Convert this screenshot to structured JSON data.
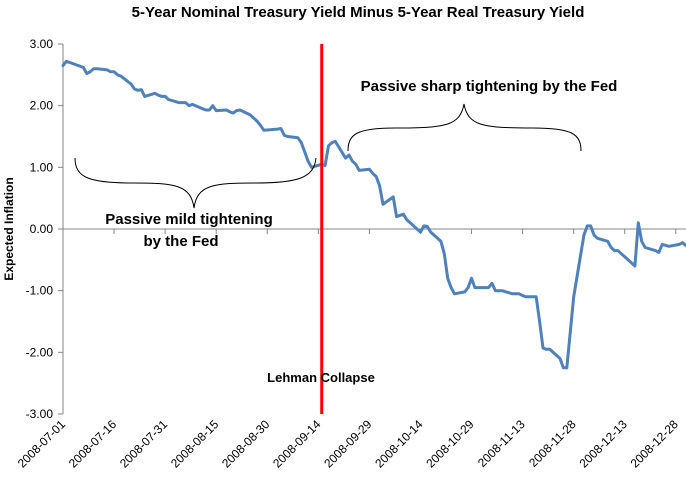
{
  "chart_data": {
    "type": "line",
    "title": "5-Year Nominal Treasury Yield Minus 5-Year Real Treasury Yield",
    "xlabel": "",
    "ylabel": "Expected Inflation",
    "ylim": [
      -3.0,
      3.0
    ],
    "yticks": [
      "3.00",
      "2.00",
      "1.00",
      "0.00",
      "-1.00",
      "-2.00",
      "-3.00"
    ],
    "xticks": [
      "2008-07-01",
      "2008-07-16",
      "2008-07-31",
      "2008-08-15",
      "2008-08-30",
      "2008-09-14",
      "2008-09-29",
      "2008-10-14",
      "2008-10-29",
      "2008-11-13",
      "2008-11-28",
      "2008-12-13",
      "2008-12-28"
    ],
    "grid": false,
    "legend": "none",
    "line_color": "#4F81BD",
    "marker_line_color": "#FF0000",
    "series": [
      {
        "x": [
          "2008-07-01",
          "2008-07-02",
          "2008-07-03",
          "2008-07-07",
          "2008-07-08",
          "2008-07-09",
          "2008-07-10",
          "2008-07-11",
          "2008-07-14",
          "2008-07-15",
          "2008-07-16",
          "2008-07-17",
          "2008-07-18",
          "2008-07-21",
          "2008-07-22",
          "2008-07-23",
          "2008-07-24",
          "2008-07-25",
          "2008-07-28",
          "2008-07-29",
          "2008-07-30",
          "2008-07-31",
          "2008-08-01",
          "2008-08-04",
          "2008-08-05",
          "2008-08-06",
          "2008-08-07",
          "2008-08-08",
          "2008-08-11",
          "2008-08-12",
          "2008-08-13",
          "2008-08-14",
          "2008-08-15",
          "2008-08-18",
          "2008-08-19",
          "2008-08-20",
          "2008-08-21",
          "2008-08-22",
          "2008-08-25",
          "2008-08-26",
          "2008-08-27",
          "2008-08-28",
          "2008-08-29",
          "2008-09-02",
          "2008-09-03",
          "2008-09-04",
          "2008-09-05",
          "2008-09-08",
          "2008-09-09",
          "2008-09-10",
          "2008-09-11",
          "2008-09-12",
          "2008-09-15",
          "2008-09-16",
          "2008-09-17",
          "2008-09-18",
          "2008-09-19",
          "2008-09-22",
          "2008-09-23",
          "2008-09-24",
          "2008-09-25",
          "2008-09-26",
          "2008-09-29",
          "2008-09-30",
          "2008-10-01",
          "2008-10-02",
          "2008-10-03",
          "2008-10-06",
          "2008-10-07",
          "2008-10-08",
          "2008-10-09",
          "2008-10-10",
          "2008-10-14",
          "2008-10-15",
          "2008-10-16",
          "2008-10-17",
          "2008-10-20",
          "2008-10-21",
          "2008-10-22",
          "2008-10-23",
          "2008-10-24",
          "2008-10-27",
          "2008-10-28",
          "2008-10-29",
          "2008-10-30",
          "2008-10-31",
          "2008-11-03",
          "2008-11-04",
          "2008-11-05",
          "2008-11-06",
          "2008-11-07",
          "2008-11-10",
          "2008-11-12",
          "2008-11-13",
          "2008-11-14",
          "2008-11-17",
          "2008-11-18",
          "2008-11-19",
          "2008-11-20",
          "2008-11-21",
          "2008-11-24",
          "2008-11-25",
          "2008-11-26",
          "2008-11-28",
          "2008-12-01",
          "2008-12-02",
          "2008-12-03",
          "2008-12-04",
          "2008-12-05",
          "2008-12-08",
          "2008-12-09",
          "2008-12-10",
          "2008-12-11",
          "2008-12-12",
          "2008-12-15",
          "2008-12-16",
          "2008-12-17",
          "2008-12-18",
          "2008-12-19",
          "2008-12-22",
          "2008-12-23",
          "2008-12-24",
          "2008-12-26",
          "2008-12-29",
          "2008-12-30",
          "2008-12-31"
        ],
        "y": [
          2.65,
          2.72,
          2.7,
          2.62,
          2.52,
          2.55,
          2.6,
          2.6,
          2.58,
          2.55,
          2.55,
          2.5,
          2.48,
          2.35,
          2.27,
          2.25,
          2.26,
          2.15,
          2.2,
          2.17,
          2.15,
          2.15,
          2.1,
          2.05,
          2.05,
          2.05,
          2.0,
          2.02,
          1.95,
          1.93,
          1.93,
          2.0,
          1.92,
          1.93,
          1.9,
          1.88,
          1.92,
          1.93,
          1.85,
          1.8,
          1.75,
          1.68,
          1.6,
          1.62,
          1.63,
          1.52,
          1.5,
          1.48,
          1.4,
          1.25,
          1.1,
          1.0,
          1.05,
          1.03,
          1.35,
          1.4,
          1.42,
          1.15,
          1.2,
          1.1,
          1.05,
          0.95,
          0.97,
          0.9,
          0.85,
          0.7,
          0.4,
          0.52,
          0.2,
          0.22,
          0.24,
          0.15,
          -0.05,
          0.05,
          0.04,
          -0.05,
          -0.2,
          -0.4,
          -0.8,
          -0.95,
          -1.05,
          -1.02,
          -0.95,
          -0.8,
          -0.95,
          -0.95,
          -0.95,
          -0.88,
          -1.0,
          -1.0,
          -1.0,
          -1.05,
          -1.05,
          -1.08,
          -1.1,
          -1.1,
          -1.5,
          -1.93,
          -1.95,
          -1.95,
          -2.1,
          -2.25,
          -2.25,
          -1.1,
          -0.1,
          0.05,
          0.05,
          -0.1,
          -0.15,
          -0.2,
          -0.3,
          -0.35,
          -0.35,
          -0.4,
          -0.55,
          -0.6,
          0.1,
          -0.2,
          -0.3,
          -0.35,
          -0.38,
          -0.25,
          -0.28,
          -0.25,
          -0.22,
          -0.27
        ]
      }
    ],
    "event_line": {
      "date": "2008-09-15",
      "label": "Lehman Collapse"
    },
    "annotations": {
      "mild": [
        "Passive mild tightening",
        "by the Fed"
      ],
      "sharp": "Passive sharp tightening by the Fed"
    }
  }
}
